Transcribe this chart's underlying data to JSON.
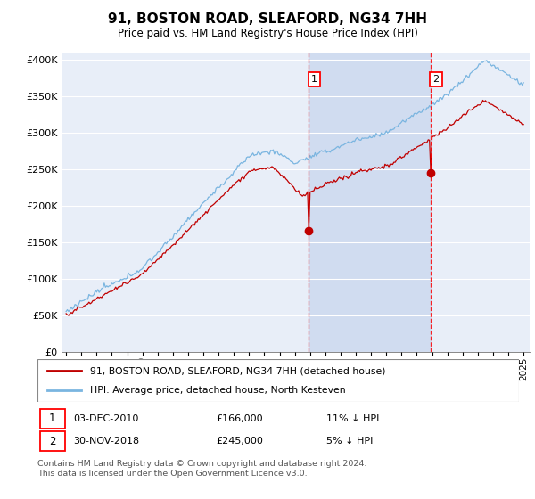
{
  "title": "91, BOSTON ROAD, SLEAFORD, NG34 7HH",
  "subtitle": "Price paid vs. HM Land Registry's House Price Index (HPI)",
  "ylabel_ticks": [
    "£0",
    "£50K",
    "£100K",
    "£150K",
    "£200K",
    "£250K",
    "£300K",
    "£350K",
    "£400K"
  ],
  "ytick_values": [
    0,
    50000,
    100000,
    150000,
    200000,
    250000,
    300000,
    350000,
    400000
  ],
  "ylim": [
    0,
    410000
  ],
  "sale1_x": 2010.92,
  "sale2_x": 2018.91,
  "sale1_price": 166000,
  "sale2_price": 245000,
  "hpi_color": "#7ab5e0",
  "price_color": "#c00000",
  "background_color": "#e8eef8",
  "shade_color": "#d0dcf0",
  "legend_line1": "91, BOSTON ROAD, SLEAFORD, NG34 7HH (detached house)",
  "legend_line2": "HPI: Average price, detached house, North Kesteven",
  "footer": "Contains HM Land Registry data © Crown copyright and database right 2024.\nThis data is licensed under the Open Government Licence v3.0."
}
